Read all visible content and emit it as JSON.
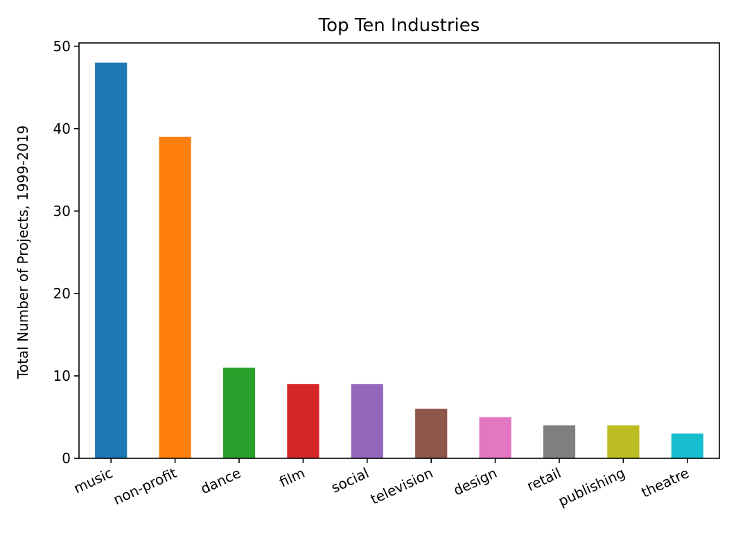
{
  "chart_data": {
    "type": "bar",
    "title": "Top Ten Industries",
    "xlabel": "",
    "ylabel": "Total Number of Projects, 1999-2019",
    "categories": [
      "music",
      "non-profit",
      "dance",
      "film",
      "social",
      "television",
      "design",
      "retail",
      "publishing",
      "theatre"
    ],
    "values": [
      48,
      39,
      11,
      9,
      9,
      6,
      5,
      4,
      4,
      3
    ],
    "colors": [
      "#1f77b4",
      "#ff7f0e",
      "#2ca02c",
      "#d62728",
      "#9467bd",
      "#8c564b",
      "#e377c2",
      "#7f7f7f",
      "#bcbd22",
      "#17becf"
    ],
    "ylim": [
      0,
      50.4
    ],
    "yticks": [
      0,
      10,
      20,
      30,
      40,
      50
    ],
    "grid": false,
    "legend": "none"
  }
}
